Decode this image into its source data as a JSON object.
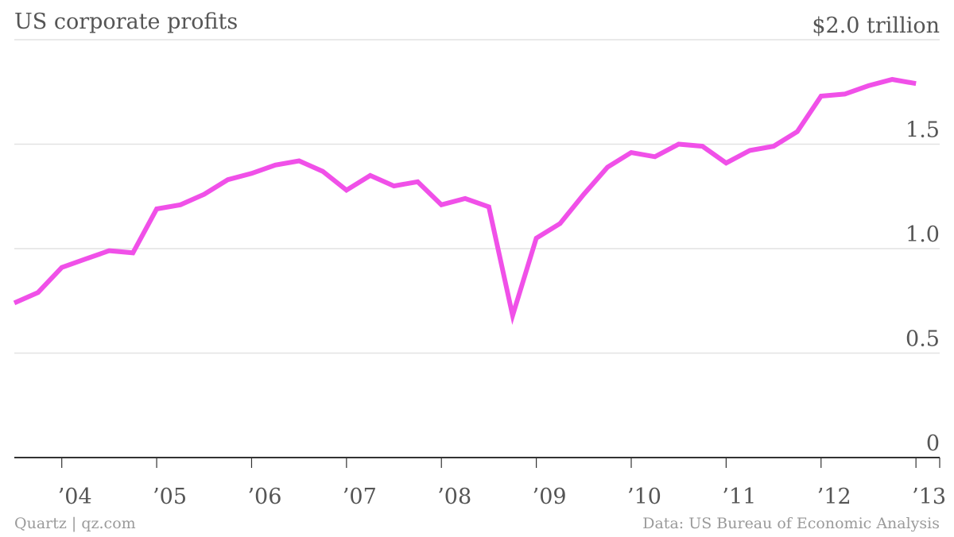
{
  "header": {
    "title": "US corporate profits"
  },
  "footer": {
    "credit": "Quartz | qz.com",
    "source": "Data: US Bureau of Economic Analysis"
  },
  "chart_data": {
    "type": "line",
    "title": "US corporate profits",
    "ylabel": "",
    "xlabel": "",
    "y_unit": "$",
    "y_top_label": "$2.0 trillion",
    "ylim": [
      0,
      2.0
    ],
    "xlim": [
      2003.5,
      2013.25
    ],
    "y_ticks": [
      {
        "value": 0,
        "label": "0"
      },
      {
        "value": 0.5,
        "label": "0.5"
      },
      {
        "value": 1.0,
        "label": "1.0"
      },
      {
        "value": 1.5,
        "label": "1.5"
      },
      {
        "value": 2.0,
        "label": "$2.0 trillion"
      }
    ],
    "x_ticks": [
      {
        "value": 2004,
        "label": "’04"
      },
      {
        "value": 2005,
        "label": "’05"
      },
      {
        "value": 2006,
        "label": "’06"
      },
      {
        "value": 2007,
        "label": "’07"
      },
      {
        "value": 2008,
        "label": "’08"
      },
      {
        "value": 2009,
        "label": "’09"
      },
      {
        "value": 2010,
        "label": "’10"
      },
      {
        "value": 2011,
        "label": "’11"
      },
      {
        "value": 2012,
        "label": "’12"
      },
      {
        "value": 2013,
        "label": "’13"
      }
    ],
    "grid": true,
    "legend": "none",
    "series": [
      {
        "color": "#f050e8",
        "x": [
          2003.5,
          2003.75,
          2004.0,
          2004.25,
          2004.5,
          2004.75,
          2005.0,
          2005.25,
          2005.5,
          2005.75,
          2006.0,
          2006.25,
          2006.5,
          2006.75,
          2007.0,
          2007.25,
          2007.5,
          2007.75,
          2008.0,
          2008.25,
          2008.5,
          2008.75,
          2009.0,
          2009.25,
          2009.5,
          2009.75,
          2010.0,
          2010.25,
          2010.5,
          2010.75,
          2011.0,
          2011.25,
          2011.5,
          2011.75,
          2012.0,
          2012.25,
          2012.5,
          2012.75,
          2013.0
        ],
        "values": [
          0.74,
          0.79,
          0.91,
          0.95,
          0.99,
          0.98,
          1.19,
          1.21,
          1.26,
          1.33,
          1.36,
          1.4,
          1.42,
          1.37,
          1.28,
          1.35,
          1.3,
          1.32,
          1.21,
          1.24,
          1.2,
          0.68,
          1.05,
          1.12,
          1.26,
          1.39,
          1.46,
          1.44,
          1.5,
          1.49,
          1.41,
          1.47,
          1.49,
          1.56,
          1.73,
          1.74,
          1.78,
          1.81,
          1.79
        ]
      }
    ]
  }
}
